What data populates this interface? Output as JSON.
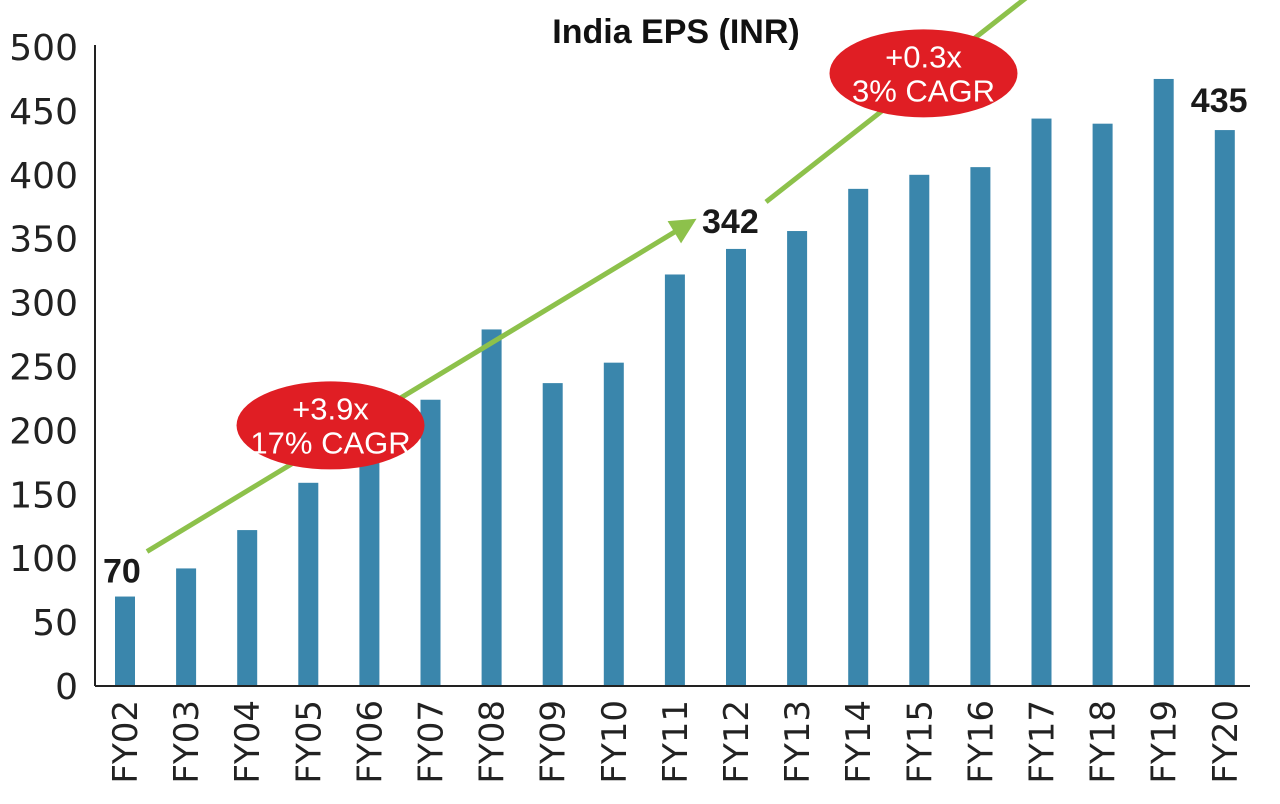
{
  "chart_data": {
    "type": "bar",
    "title": "India EPS (INR)",
    "xlabel": "",
    "ylabel": "",
    "ylim": [
      0,
      500
    ],
    "yticks": [
      0,
      50,
      100,
      150,
      200,
      250,
      300,
      350,
      400,
      450,
      500
    ],
    "grid": false,
    "categories": [
      "FY02",
      "FY03",
      "FY04",
      "FY05",
      "FY06",
      "FY07",
      "FY08",
      "FY09",
      "FY10",
      "FY11",
      "FY12",
      "FY13",
      "FY14",
      "FY15",
      "FY16",
      "FY17",
      "FY18",
      "FY19",
      "FY20"
    ],
    "values": [
      70,
      92,
      122,
      159,
      178,
      224,
      279,
      237,
      253,
      322,
      342,
      356,
      389,
      400,
      406,
      444,
      440,
      475,
      435
    ],
    "data_labels": [
      {
        "category": "FY02",
        "text": "70"
      },
      {
        "category": "FY12",
        "text": "342"
      },
      {
        "category": "FY20",
        "text": "435"
      }
    ],
    "annotations": [
      {
        "from": "FY02",
        "to": "FY12",
        "line1": "+3.9x",
        "line2": "17% CAGR"
      },
      {
        "from": "FY12",
        "to": "FY20",
        "line1": "+0.3x",
        "line2": "3% CAGR"
      }
    ],
    "colors": {
      "bar": "#3a86ac",
      "arrow": "#8dc14b",
      "badge": "#e01e24"
    }
  }
}
